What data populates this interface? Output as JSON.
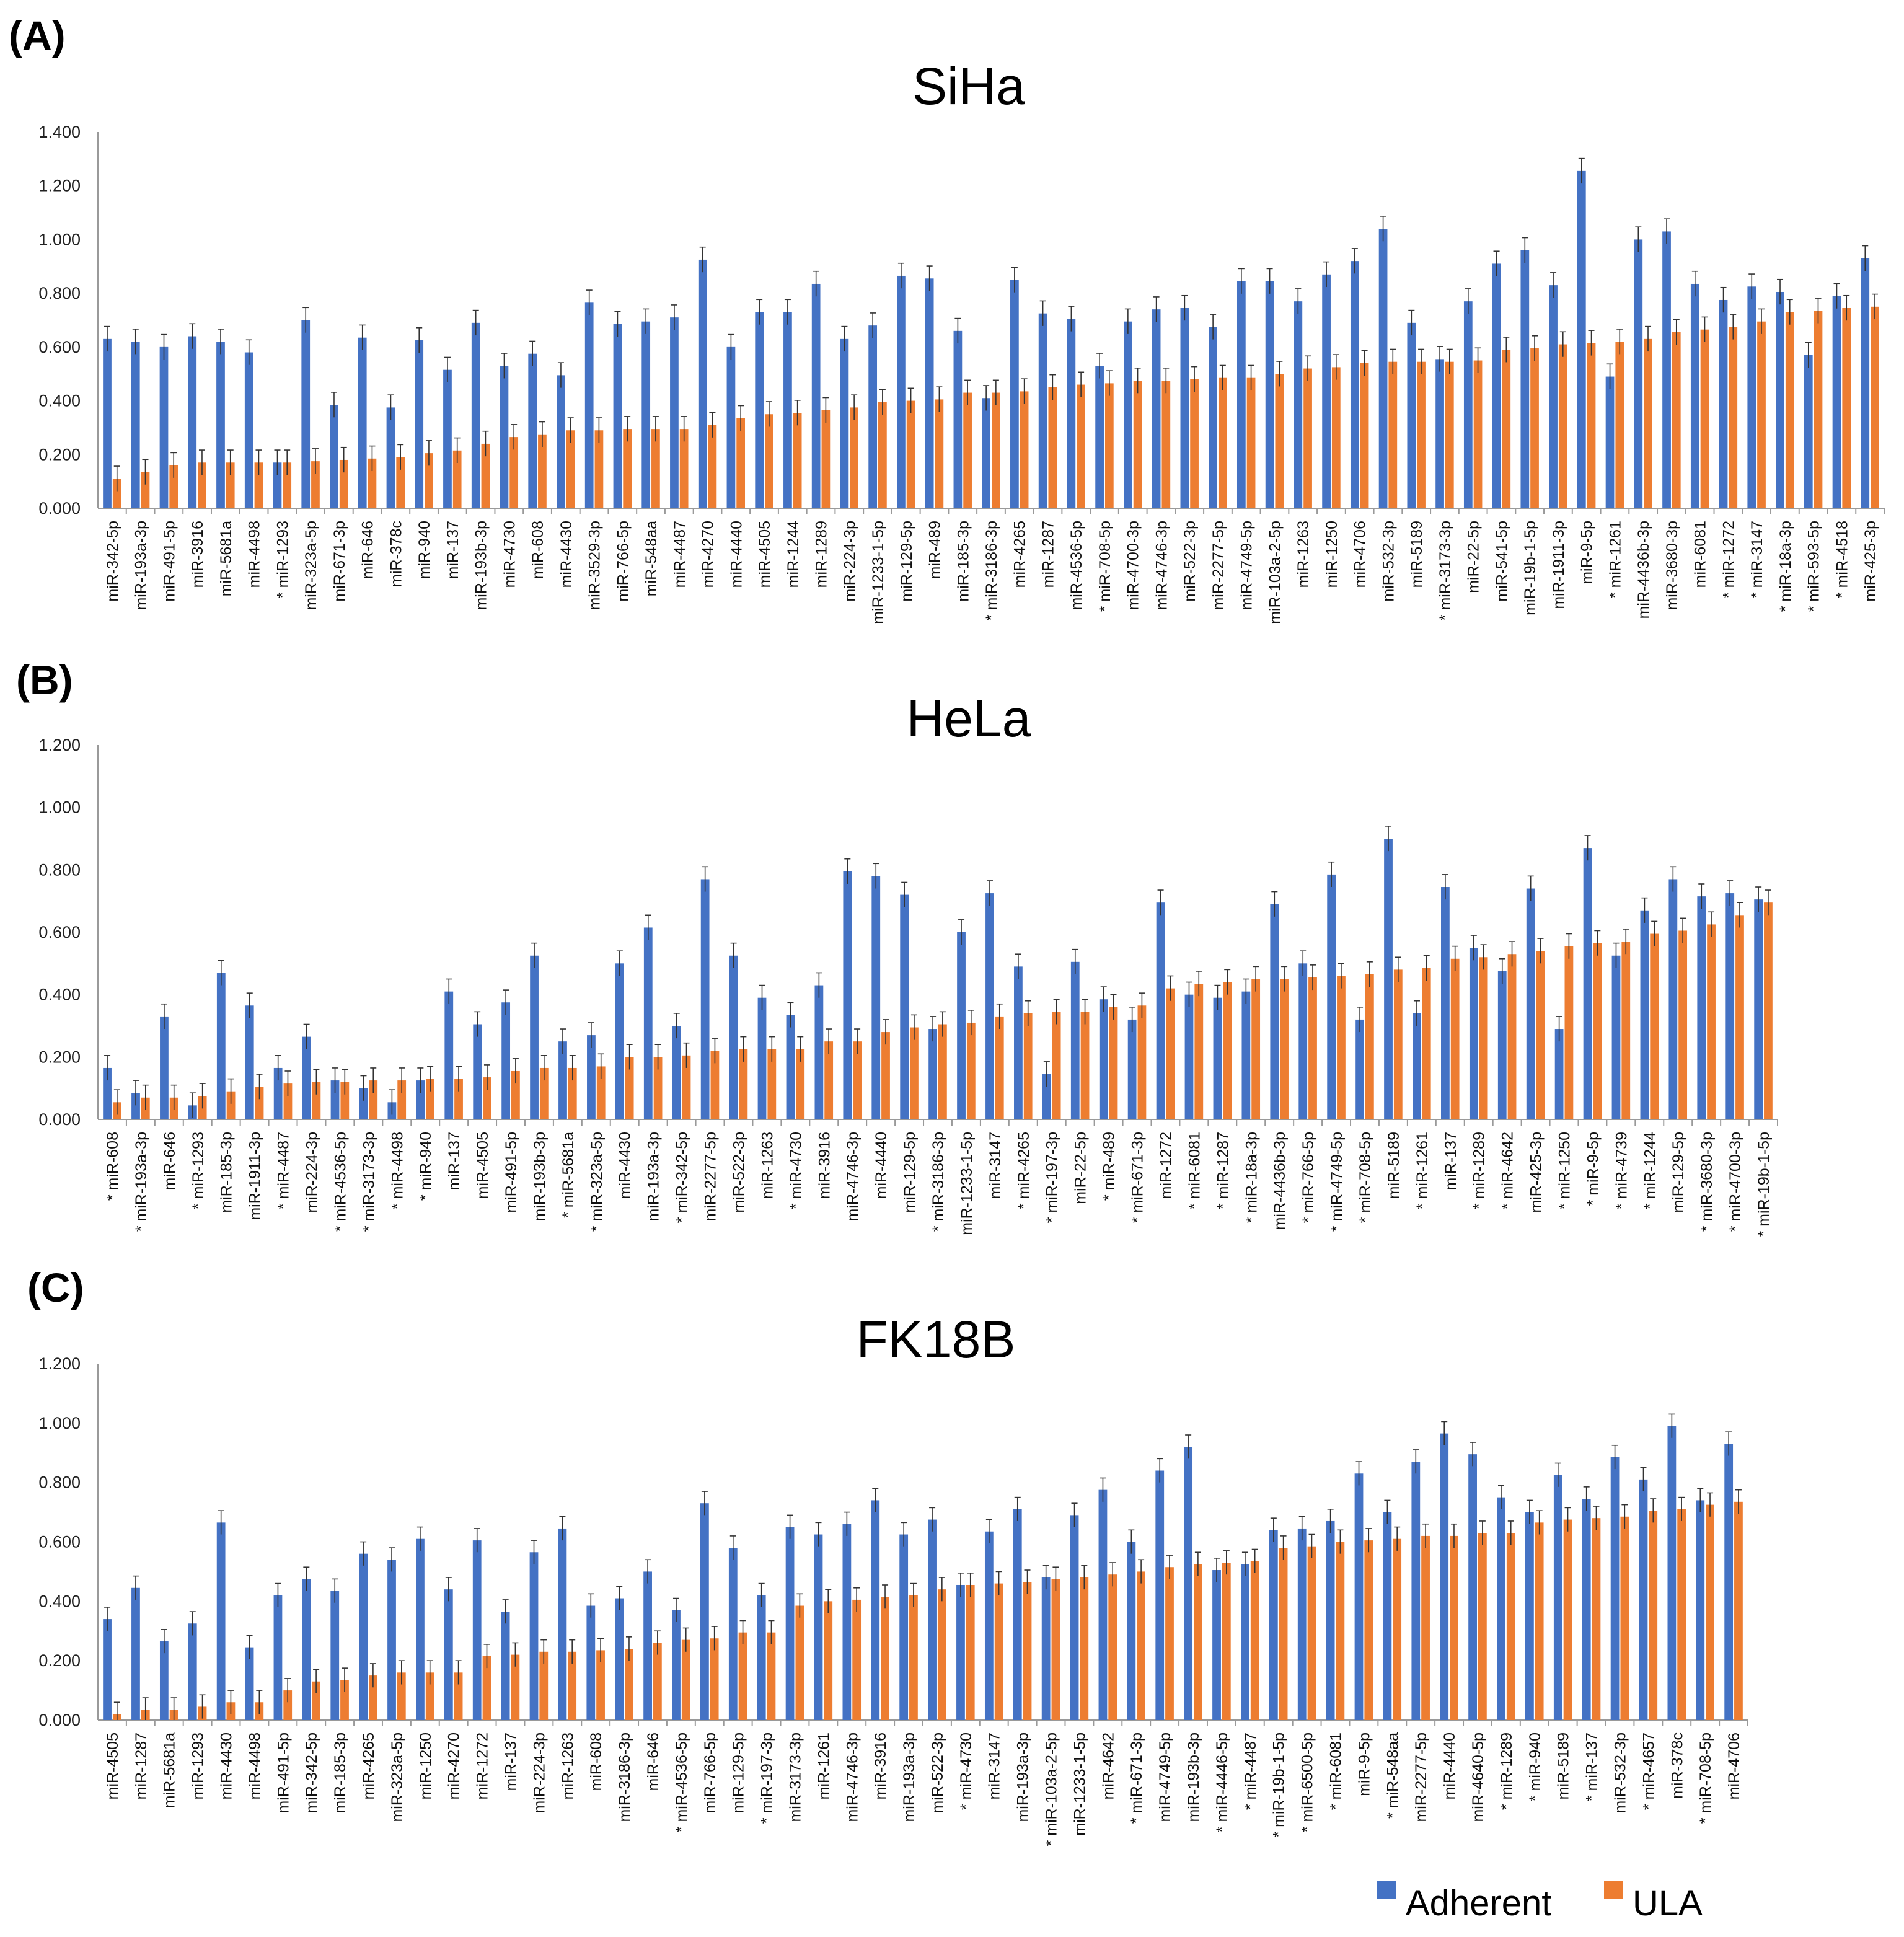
{
  "colors": {
    "adherent": "#4472C4",
    "ula": "#ED7D31",
    "axis": "#9a9a9a",
    "error": "#333333"
  },
  "legend": [
    "Adherent",
    "ULA"
  ],
  "chart_data": [
    {
      "type": "bar",
      "panel_label": "(A)",
      "title": "SiHa",
      "ylim": [
        0,
        1.4
      ],
      "yticks": [
        "0.000",
        "0.200",
        "0.400",
        "0.600",
        "0.800",
        "1.000",
        "1.200",
        "1.400"
      ],
      "categories": [
        "miR-342-5p",
        "miR-193a-3p",
        "miR-491-5p",
        "miR-3916",
        "miR-5681a",
        "miR-4498",
        "* miR-1293",
        "miR-323a-5p",
        "miR-671-3p",
        "miR-646",
        "miR-378c",
        "miR-940",
        "miR-137",
        "miR-193b-3p",
        "miR-4730",
        "miR-608",
        "miR-4430",
        "miR-3529-3p",
        "miR-766-5p",
        "miR-548aa",
        "miR-4487",
        "miR-4270",
        "miR-4440",
        "miR-4505",
        "miR-1244",
        "miR-1289",
        "miR-224-3p",
        "miR-1233-1-5p",
        "miR-129-5p",
        "miR-489",
        "miR-185-3p",
        "* miR-3186-3p",
        "miR-4265",
        "miR-1287",
        "miR-4536-5p",
        "* miR-708-5p",
        "miR-4700-3p",
        "miR-4746-3p",
        "miR-522-3p",
        "miR-2277-5p",
        "miR-4749-5p",
        "miR-103a-2-5p",
        "miR-1263",
        "miR-1250",
        "miR-4706",
        "miR-532-3p",
        "miR-5189",
        "* miR-3173-3p",
        "miR-22-5p",
        "miR-541-5p",
        "miR-19b-1-5p",
        "miR-1911-3p",
        "miR-9-5p",
        "* miR-1261",
        "miR-4436b-3p",
        "miR-3680-3p",
        "miR-6081",
        "* miR-1272",
        "* miR-3147",
        "* miR-18a-3p",
        "* miR-593-5p",
        "* miR-4518",
        "miR-425-3p"
      ],
      "series": [
        {
          "name": "Adherent",
          "values": [
            0.63,
            0.62,
            0.6,
            0.64,
            0.62,
            0.58,
            0.17,
            0.7,
            0.385,
            0.635,
            0.375,
            0.625,
            0.515,
            0.69,
            0.53,
            0.575,
            0.495,
            0.765,
            0.685,
            0.695,
            0.71,
            0.925,
            0.6,
            0.73,
            0.73,
            0.835,
            0.63,
            0.68,
            0.865,
            0.855,
            0.66,
            0.41,
            0.85,
            0.725,
            0.705,
            0.53,
            0.695,
            0.74,
            0.745,
            0.675,
            0.845,
            0.845,
            0.77,
            0.87,
            0.92,
            1.04,
            0.69,
            0.555,
            0.77,
            0.91,
            0.96,
            0.83,
            1.255,
            0.49,
            1.0,
            1.03,
            0.835,
            0.775,
            0.825,
            0.805,
            0.57,
            0.79,
            0.93
          ]
        },
        {
          "name": "ULA",
          "values": [
            0.11,
            0.135,
            0.16,
            0.17,
            0.17,
            0.17,
            0.17,
            0.175,
            0.18,
            0.185,
            0.19,
            0.205,
            0.215,
            0.24,
            0.265,
            0.275,
            0.29,
            0.29,
            0.295,
            0.295,
            0.295,
            0.31,
            0.335,
            0.35,
            0.355,
            0.365,
            0.375,
            0.395,
            0.4,
            0.405,
            0.43,
            0.43,
            0.435,
            0.45,
            0.46,
            0.465,
            0.475,
            0.475,
            0.48,
            0.485,
            0.485,
            0.5,
            0.52,
            0.525,
            0.54,
            0.545,
            0.545,
            0.545,
            0.55,
            0.59,
            0.595,
            0.61,
            0.615,
            0.62,
            0.63,
            0.655,
            0.665,
            0.675,
            0.695,
            0.73,
            0.735,
            0.745,
            0.75
          ]
        }
      ]
    },
    {
      "type": "bar",
      "panel_label": "(B)",
      "title": "HeLa",
      "ylim": [
        0,
        1.2
      ],
      "yticks": [
        "0.000",
        "0.200",
        "0.400",
        "0.600",
        "0.800",
        "1.000",
        "1.200"
      ],
      "categories": [
        "* miR-608",
        "* miR-193a-3p",
        "miR-646",
        "* miR-1293",
        "miR-185-3p",
        "miR-1911-3p",
        "* miR-4487",
        "miR-224-3p",
        "* miR-4536-5p",
        "* miR-3173-3p",
        "* miR-4498",
        "* miR-940",
        "miR-137",
        "miR-4505",
        "miR-491-5p",
        "miR-193b-3p",
        "* miR-5681a",
        "* miR-323a-5p",
        "miR-4430",
        "miR-193a-3p",
        "* miR-342-5p",
        "miR-2277-5p",
        "miR-522-3p",
        "miR-1263",
        "* miR-4730",
        "miR-3916",
        "miR-4746-3p",
        "miR-4440",
        "miR-129-5p",
        "* miR-3186-3p",
        "miR-1233-1-5p",
        "miR-3147",
        "* miR-4265",
        "* miR-197-3p",
        "miR-22-5p",
        "* miR-489",
        "* miR-671-3p",
        "miR-1272",
        "* miR-6081",
        "* miR-1287",
        "* miR-18a-3p",
        "miR-4436b-3p",
        "* miR-766-5p",
        "* miR-4749-5p",
        "* miR-708-5p",
        "miR-5189",
        "* miR-1261",
        "miR-137",
        "* miR-1289",
        "* miR-4642",
        "miR-425-3p",
        "* miR-1250",
        "* miR-9-5p",
        "* miR-4739",
        "* miR-1244",
        "miR-129-5p",
        "* miR-3680-3p",
        "* miR-4700-3p",
        "* miR-19b-1-5p"
      ],
      "series": [
        {
          "name": "Adherent",
          "values": [
            0.165,
            0.085,
            0.33,
            0.045,
            0.47,
            0.365,
            0.165,
            0.265,
            0.125,
            0.1,
            0.055,
            0.125,
            0.41,
            0.305,
            0.375,
            0.525,
            0.25,
            0.27,
            0.5,
            0.615,
            0.3,
            0.77,
            0.525,
            0.39,
            0.335,
            0.43,
            0.795,
            0.78,
            0.72,
            0.29,
            0.6,
            0.725,
            0.49,
            0.145,
            0.505,
            0.385,
            0.32,
            0.695,
            0.4,
            0.39,
            0.41,
            0.69,
            0.5,
            0.785,
            0.32,
            0.9,
            0.34,
            0.745,
            0.55,
            0.475,
            0.74,
            0.29,
            0.87,
            0.525,
            0.67,
            0.77,
            0.715,
            0.725,
            0.705
          ]
        },
        {
          "name": "ULA",
          "values": [
            0.055,
            0.07,
            0.07,
            0.075,
            0.09,
            0.105,
            0.115,
            0.12,
            0.12,
            0.125,
            0.125,
            0.13,
            0.13,
            0.135,
            0.155,
            0.165,
            0.165,
            0.17,
            0.2,
            0.2,
            0.205,
            0.22,
            0.225,
            0.225,
            0.225,
            0.25,
            0.25,
            0.28,
            0.295,
            0.305,
            0.31,
            0.33,
            0.34,
            0.345,
            0.345,
            0.36,
            0.365,
            0.42,
            0.435,
            0.44,
            0.45,
            0.45,
            0.455,
            0.46,
            0.465,
            0.48,
            0.485,
            0.515,
            0.52,
            0.53,
            0.54,
            0.555,
            0.565,
            0.57,
            0.595,
            0.605,
            0.625,
            0.655,
            0.695
          ]
        }
      ]
    },
    {
      "type": "bar",
      "panel_label": "(C)",
      "title": "FK18B",
      "ylim": [
        0,
        1.2
      ],
      "yticks": [
        "0.000",
        "0.200",
        "0.400",
        "0.600",
        "0.800",
        "1.000",
        "1.200"
      ],
      "categories": [
        "miR-4505",
        "miR-1287",
        "miR-5681a",
        "miR-1293",
        "miR-4430",
        "miR-4498",
        "miR-491-5p",
        "miR-342-5p",
        "miR-185-3p",
        "miR-4265",
        "miR-323a-5p",
        "miR-1250",
        "miR-4270",
        "miR-1272",
        "miR-137",
        "miR-224-3p",
        "miR-1263",
        "miR-608",
        "miR-3186-3p",
        "miR-646",
        "* miR-4536-5p",
        "miR-766-5p",
        "miR-129-5p",
        "* miR-197-3p",
        "miR-3173-3p",
        "miR-1261",
        "miR-4746-3p",
        "miR-3916",
        "miR-193a-3p",
        "miR-522-3p",
        "* miR-4730",
        "miR-3147",
        "miR-193a-3p",
        "* miR-103a-2-5p",
        "miR-1233-1-5p",
        "miR-4642",
        "* miR-671-3p",
        "miR-4749-5p",
        "miR-193b-3p",
        "* miR-4446-5p",
        "* miR-4487",
        "* miR-19b-1-5p",
        "* miR-6500-5p",
        "* miR-6081",
        "miR-9-5p",
        "* miR-548aa",
        "miR-2277-5p",
        "miR-4440",
        "miR-4640-5p",
        "* miR-1289",
        "* miR-940",
        "miR-5189",
        "* miR-137",
        "miR-532-3p",
        "* miR-4657",
        "miR-378c",
        "* miR-708-5p",
        "miR-4706"
      ],
      "series": [
        {
          "name": "Adherent",
          "values": [
            0.34,
            0.445,
            0.265,
            0.325,
            0.665,
            0.245,
            0.42,
            0.475,
            0.435,
            0.56,
            0.54,
            0.61,
            0.44,
            0.605,
            0.365,
            0.565,
            0.645,
            0.385,
            0.41,
            0.5,
            0.37,
            0.73,
            0.58,
            0.42,
            0.65,
            0.625,
            0.66,
            0.74,
            0.625,
            0.675,
            0.455,
            0.635,
            0.71,
            0.48,
            0.69,
            0.775,
            0.6,
            0.84,
            0.92,
            0.505,
            0.525,
            0.64,
            0.645,
            0.67,
            0.83,
            0.7,
            0.87,
            0.965,
            0.895,
            0.75,
            0.7,
            0.825,
            0.745,
            0.885,
            0.81,
            0.99,
            0.74,
            0.93
          ]
        },
        {
          "name": "ULA",
          "values": [
            0.02,
            0.035,
            0.035,
            0.045,
            0.06,
            0.06,
            0.1,
            0.13,
            0.135,
            0.15,
            0.16,
            0.16,
            0.16,
            0.215,
            0.22,
            0.23,
            0.23,
            0.235,
            0.24,
            0.26,
            0.27,
            0.275,
            0.295,
            0.295,
            0.385,
            0.4,
            0.405,
            0.415,
            0.42,
            0.44,
            0.455,
            0.46,
            0.465,
            0.475,
            0.48,
            0.49,
            0.5,
            0.515,
            0.525,
            0.53,
            0.535,
            0.58,
            0.585,
            0.6,
            0.605,
            0.61,
            0.62,
            0.62,
            0.63,
            0.63,
            0.665,
            0.675,
            0.68,
            0.685,
            0.705,
            0.71,
            0.725,
            0.735
          ]
        }
      ]
    }
  ]
}
